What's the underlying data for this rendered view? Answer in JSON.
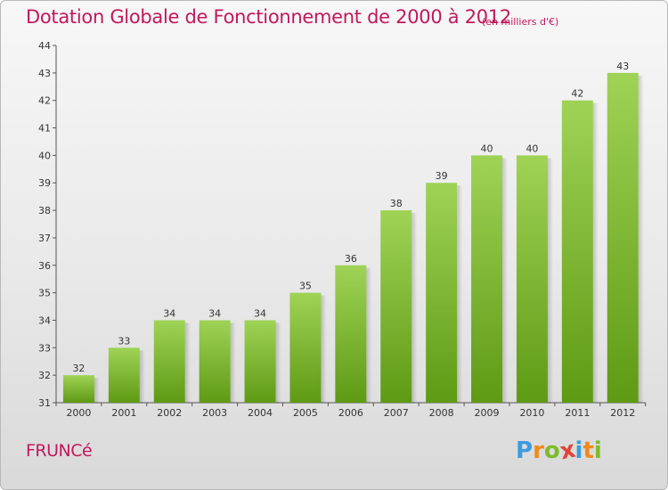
{
  "header": {
    "title": "Dotation Globale de Fonctionnement de 2000 à 2012",
    "subtitle": "(en milliers d'€)"
  },
  "footer": {
    "commune": "FRUNCé",
    "logo_letters": [
      "P",
      "r",
      "o",
      "x",
      "i",
      "t",
      "i"
    ],
    "logo_colors": [
      "#3a9be0",
      "#f08a1c",
      "#7dbb2b",
      "#e0443a",
      "#3a9be0",
      "#f08a1c",
      "#7dbb2b"
    ]
  },
  "colors": {
    "bar_top": "#9fd356",
    "bar_bottom": "#5e9a14",
    "axis": "#555555",
    "grid_dash": "#777777"
  },
  "chart_data": {
    "type": "bar",
    "categories": [
      "2000",
      "2001",
      "2002",
      "2003",
      "2004",
      "2005",
      "2006",
      "2007",
      "2008",
      "2009",
      "2010",
      "2011",
      "2012"
    ],
    "values": [
      32,
      33,
      34,
      34,
      34,
      35,
      36,
      38,
      39,
      40,
      40,
      42,
      43
    ],
    "title": "Dotation Globale de Fonctionnement de 2000 à 2012",
    "subtitle": "(en milliers d'€)",
    "xlabel": "",
    "ylabel": "",
    "ylim": [
      31,
      44
    ],
    "yticks": [
      31,
      32,
      33,
      34,
      35,
      36,
      37,
      38,
      39,
      40,
      41,
      42,
      43,
      44
    ],
    "grid": false,
    "legend": "none",
    "data_labels": true
  }
}
